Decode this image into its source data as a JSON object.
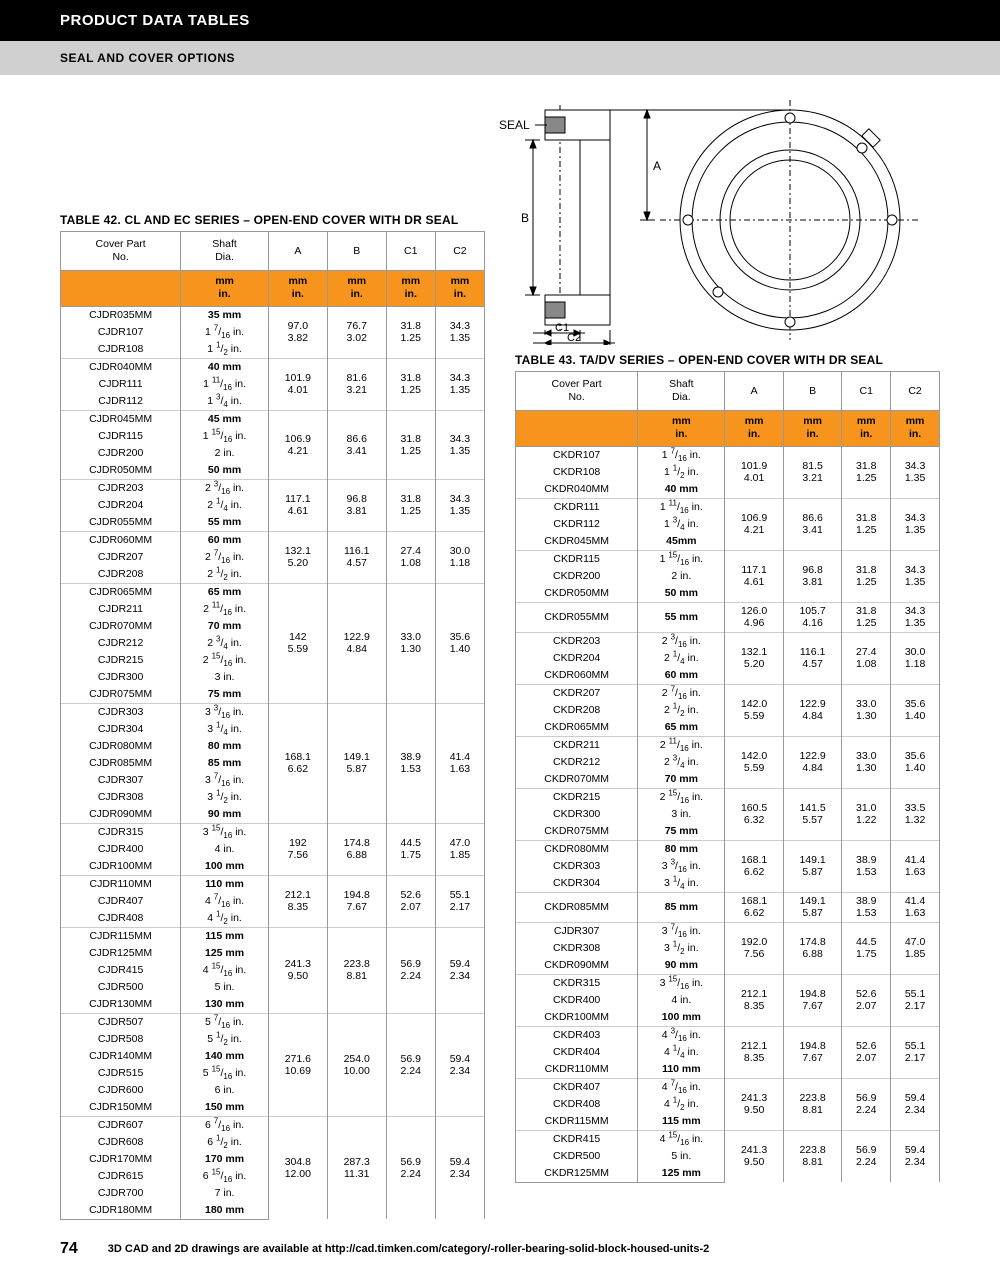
{
  "header": {
    "title": "PRODUCT DATA TABLES",
    "subtitle": "SEAL AND COVER OPTIONS"
  },
  "diagram": {
    "seal_label": "SEAL",
    "labels": {
      "A": "A",
      "B": "B",
      "C1": "C1",
      "C2": "C2"
    }
  },
  "units_row": [
    "mm",
    "in."
  ],
  "table42": {
    "title": "TABLE 42. CL AND EC SERIES – OPEN-END COVER WITH DR SEAL",
    "columns": [
      "Cover Part\nNo.",
      "Shaft\nDia.",
      "A",
      "B",
      "C1",
      "C2"
    ],
    "groups": [
      {
        "rows": [
          [
            "CJDR035MM",
            "35 mm",
            true
          ],
          [
            "CJDR107",
            "1 7/16 in.",
            false
          ],
          [
            "CJDR108",
            "1 1/2 in.",
            false
          ]
        ],
        "A": [
          "97.0",
          "3.82"
        ],
        "B": [
          "76.7",
          "3.02"
        ],
        "C1": [
          "31.8",
          "1.25"
        ],
        "C2": [
          "34.3",
          "1.35"
        ]
      },
      {
        "rows": [
          [
            "CJDR040MM",
            "40 mm",
            true
          ],
          [
            "CJDR111",
            "1 11/16 in.",
            false
          ],
          [
            "CJDR112",
            "1 3/4 in.",
            false
          ]
        ],
        "A": [
          "101.9",
          "4.01"
        ],
        "B": [
          "81.6",
          "3.21"
        ],
        "C1": [
          "31.8",
          "1.25"
        ],
        "C2": [
          "34.3",
          "1.35"
        ]
      },
      {
        "rows": [
          [
            "CJDR045MM",
            "45 mm",
            true
          ],
          [
            "CJDR115",
            "1 15/16 in.",
            false
          ],
          [
            "CJDR200",
            "2 in.",
            false
          ],
          [
            "CJDR050MM",
            "50 mm",
            true
          ]
        ],
        "A": [
          "106.9",
          "4.21"
        ],
        "B": [
          "86.6",
          "3.41"
        ],
        "C1": [
          "31.8",
          "1.25"
        ],
        "C2": [
          "34.3",
          "1.35"
        ]
      },
      {
        "rows": [
          [
            "CJDR203",
            "2 3/16 in.",
            false
          ],
          [
            "CJDR204",
            "2 1/4 in.",
            false
          ],
          [
            "CJDR055MM",
            "55 mm",
            true
          ]
        ],
        "A": [
          "117.1",
          "4.61"
        ],
        "B": [
          "96.8",
          "3.81"
        ],
        "C1": [
          "31.8",
          "1.25"
        ],
        "C2": [
          "34.3",
          "1.35"
        ]
      },
      {
        "rows": [
          [
            "CJDR060MM",
            "60 mm",
            true
          ],
          [
            "CJDR207",
            "2 7/16 in.",
            false
          ],
          [
            "CJDR208",
            "2 1/2 in.",
            false
          ]
        ],
        "A": [
          "132.1",
          "5.20"
        ],
        "B": [
          "116.1",
          "4.57"
        ],
        "C1": [
          "27.4",
          "1.08"
        ],
        "C2": [
          "30.0",
          "1.18"
        ]
      },
      {
        "rows": [
          [
            "CJDR065MM",
            "65 mm",
            true
          ],
          [
            "CJDR211",
            "2 11/16 in.",
            false
          ],
          [
            "CJDR070MM",
            "70 mm",
            true
          ],
          [
            "CJDR212",
            "2 3/4 in.",
            false
          ],
          [
            "CJDR215",
            "2 15/16 in.",
            false
          ],
          [
            "CJDR300",
            "3 in.",
            false
          ],
          [
            "CJDR075MM",
            "75 mm",
            true
          ]
        ],
        "A": [
          "142",
          "5.59"
        ],
        "B": [
          "122.9",
          "4.84"
        ],
        "C1": [
          "33.0",
          "1.30"
        ],
        "C2": [
          "35.6",
          "1.40"
        ]
      },
      {
        "rows": [
          [
            "CJDR303",
            "3 3/16 in.",
            false
          ],
          [
            "CJDR304",
            "3 1/4 in.",
            false
          ],
          [
            "CJDR080MM",
            "80 mm",
            true
          ],
          [
            "CJDR085MM",
            "85 mm",
            true
          ],
          [
            "CJDR307",
            "3 7/16 in.",
            false
          ],
          [
            "CJDR308",
            "3 1/2 in.",
            false
          ],
          [
            "CJDR090MM",
            "90 mm",
            true
          ]
        ],
        "A": [
          "168.1",
          "6.62"
        ],
        "B": [
          "149.1",
          "5.87"
        ],
        "C1": [
          "38.9",
          "1.53"
        ],
        "C2": [
          "41.4",
          "1.63"
        ]
      },
      {
        "rows": [
          [
            "CJDR315",
            "3 15/16 in.",
            false
          ],
          [
            "CJDR400",
            "4 in.",
            false
          ],
          [
            "CJDR100MM",
            "100 mm",
            true
          ]
        ],
        "A": [
          "192",
          "7.56"
        ],
        "B": [
          "174.8",
          "6.88"
        ],
        "C1": [
          "44.5",
          "1.75"
        ],
        "C2": [
          "47.0",
          "1.85"
        ]
      },
      {
        "rows": [
          [
            "CJDR110MM",
            "110 mm",
            true
          ],
          [
            "CJDR407",
            "4 7/16 in.",
            false
          ],
          [
            "CJDR408",
            "4 1/2 in.",
            false
          ]
        ],
        "A": [
          "212.1",
          "8.35"
        ],
        "B": [
          "194.8",
          "7.67"
        ],
        "C1": [
          "52.6",
          "2.07"
        ],
        "C2": [
          "55.1",
          "2.17"
        ]
      },
      {
        "rows": [
          [
            "CJDR115MM",
            "115 mm",
            true
          ],
          [
            "CJDR125MM",
            "125 mm",
            true
          ],
          [
            "CJDR415",
            "4 15/16 in.",
            false
          ],
          [
            "CJDR500",
            "5 in.",
            false
          ],
          [
            "CJDR130MM",
            "130 mm",
            true
          ]
        ],
        "A": [
          "241.3",
          "9.50"
        ],
        "B": [
          "223.8",
          "8.81"
        ],
        "C1": [
          "56.9",
          "2.24"
        ],
        "C2": [
          "59.4",
          "2.34"
        ]
      },
      {
        "rows": [
          [
            "CJDR507",
            "5 7/16 in.",
            false
          ],
          [
            "CJDR508",
            "5 1/2 in.",
            false
          ],
          [
            "CJDR140MM",
            "140 mm",
            true
          ],
          [
            "CJDR515",
            "5 15/16 in.",
            false
          ],
          [
            "CJDR600",
            "6 in.",
            false
          ],
          [
            "CJDR150MM",
            "150 mm",
            true
          ]
        ],
        "A": [
          "271.6",
          "10.69"
        ],
        "B": [
          "254.0",
          "10.00"
        ],
        "C1": [
          "56.9",
          "2.24"
        ],
        "C2": [
          "59.4",
          "2.34"
        ]
      },
      {
        "rows": [
          [
            "CJDR607",
            "6 7/16 in.",
            false
          ],
          [
            "CJDR608",
            "6 1/2 in.",
            false
          ],
          [
            "CJDR170MM",
            "170 mm",
            true
          ],
          [
            "CJDR615",
            "6 15/16 in.",
            false
          ],
          [
            "CJDR700",
            "7 in.",
            false
          ],
          [
            "CJDR180MM",
            "180 mm",
            true
          ]
        ],
        "A": [
          "304.8",
          "12.00"
        ],
        "B": [
          "287.3",
          "11.31"
        ],
        "C1": [
          "56.9",
          "2.24"
        ],
        "C2": [
          "59.4",
          "2.34"
        ]
      }
    ]
  },
  "table43": {
    "title": "TABLE 43. TA/DV SERIES – OPEN-END COVER WITH DR SEAL",
    "columns": [
      "Cover Part\nNo.",
      "Shaft\nDia.",
      "A",
      "B",
      "C1",
      "C2"
    ],
    "groups": [
      {
        "rows": [
          [
            "CKDR107",
            "1 7/16 in.",
            false
          ],
          [
            "CKDR108",
            "1 1/2 in.",
            false
          ],
          [
            "CKDR040MM",
            "40 mm",
            true
          ]
        ],
        "A": [
          "101.9",
          "4.01"
        ],
        "B": [
          "81.5",
          "3.21"
        ],
        "C1": [
          "31.8",
          "1.25"
        ],
        "C2": [
          "34.3",
          "1.35"
        ]
      },
      {
        "rows": [
          [
            "CKDR111",
            "1 11/16 in.",
            false
          ],
          [
            "CKDR112",
            "1 3/4 in.",
            false
          ],
          [
            "CKDR045MM",
            "45mm",
            true
          ]
        ],
        "A": [
          "106.9",
          "4.21"
        ],
        "B": [
          "86.6",
          "3.41"
        ],
        "C1": [
          "31.8",
          "1.25"
        ],
        "C2": [
          "34.3",
          "1.35"
        ]
      },
      {
        "rows": [
          [
            "CKDR115",
            "1 15/16 in.",
            false
          ],
          [
            "CKDR200",
            "2 in.",
            false
          ],
          [
            "CKDR050MM",
            "50 mm",
            true
          ]
        ],
        "A": [
          "117.1",
          "4.61"
        ],
        "B": [
          "96.8",
          "3.81"
        ],
        "C1": [
          "31.8",
          "1.25"
        ],
        "C2": [
          "34.3",
          "1.35"
        ]
      },
      {
        "rows": [
          [
            "CKDR055MM",
            "55 mm",
            true
          ]
        ],
        "A": [
          "126.0",
          "4.96"
        ],
        "B": [
          "105.7",
          "4.16"
        ],
        "C1": [
          "31.8",
          "1.25"
        ],
        "C2": [
          "34.3",
          "1.35"
        ]
      },
      {
        "rows": [
          [
            "CKDR203",
            "2 3/16 in.",
            false
          ],
          [
            "CKDR204",
            "2 1/4 in.",
            false
          ],
          [
            "CKDR060MM",
            "60 mm",
            true
          ]
        ],
        "A": [
          "132.1",
          "5.20"
        ],
        "B": [
          "116.1",
          "4.57"
        ],
        "C1": [
          "27.4",
          "1.08"
        ],
        "C2": [
          "30.0",
          "1.18"
        ]
      },
      {
        "rows": [
          [
            "CKDR207",
            "2 7/16 in.",
            false
          ],
          [
            "CKDR208",
            "2 1/2 in.",
            false
          ],
          [
            "CKDR065MM",
            "65 mm",
            true
          ]
        ],
        "A": [
          "142.0",
          "5.59"
        ],
        "B": [
          "122.9",
          "4.84"
        ],
        "C1": [
          "33.0",
          "1.30"
        ],
        "C2": [
          "35.6",
          "1.40"
        ]
      },
      {
        "rows": [
          [
            "CKDR211",
            "2 11/16 in.",
            false
          ],
          [
            "CKDR212",
            "2 3/4 in.",
            false
          ],
          [
            "CKDR070MM",
            "70 mm",
            true
          ]
        ],
        "A": [
          "142.0",
          "5.59"
        ],
        "B": [
          "122.9",
          "4.84"
        ],
        "C1": [
          "33.0",
          "1.30"
        ],
        "C2": [
          "35.6",
          "1.40"
        ]
      },
      {
        "rows": [
          [
            "CKDR215",
            "2 15/16 in.",
            false
          ],
          [
            "CKDR300",
            "3 in.",
            false
          ],
          [
            "CKDR075MM",
            "75 mm",
            true
          ]
        ],
        "A": [
          "160.5",
          "6.32"
        ],
        "B": [
          "141.5",
          "5.57"
        ],
        "C1": [
          "31.0",
          "1.22"
        ],
        "C2": [
          "33.5",
          "1.32"
        ]
      },
      {
        "rows": [
          [
            "CKDR080MM",
            "80 mm",
            true
          ],
          [
            "CKDR303",
            "3 3/16 in.",
            false
          ],
          [
            "CKDR304",
            "3 1/4 in.",
            false
          ]
        ],
        "A": [
          "168.1",
          "6.62"
        ],
        "B": [
          "149.1",
          "5.87"
        ],
        "C1": [
          "38.9",
          "1.53"
        ],
        "C2": [
          "41.4",
          "1.63"
        ]
      },
      {
        "rows": [
          [
            "CKDR085MM",
            "85 mm",
            true
          ]
        ],
        "A": [
          "168.1",
          "6.62"
        ],
        "B": [
          "149.1",
          "5.87"
        ],
        "C1": [
          "38.9",
          "1.53"
        ],
        "C2": [
          "41.4",
          "1.63"
        ]
      },
      {
        "rows": [
          [
            "CJDR307",
            "3 7/16 in.",
            false
          ],
          [
            "CKDR308",
            "3 1/2 in.",
            false
          ],
          [
            "CKDR090MM",
            "90 mm",
            true
          ]
        ],
        "A": [
          "192.0",
          "7.56"
        ],
        "B": [
          "174.8",
          "6.88"
        ],
        "C1": [
          "44.5",
          "1.75"
        ],
        "C2": [
          "47.0",
          "1.85"
        ]
      },
      {
        "rows": [
          [
            "CKDR315",
            "3 15/16 in.",
            false
          ],
          [
            "CKDR400",
            "4 in.",
            false
          ],
          [
            "CKDR100MM",
            "100 mm",
            true
          ]
        ],
        "A": [
          "212.1",
          "8.35"
        ],
        "B": [
          "194.8",
          "7.67"
        ],
        "C1": [
          "52.6",
          "2.07"
        ],
        "C2": [
          "55.1",
          "2.17"
        ]
      },
      {
        "rows": [
          [
            "CKDR403",
            "4 3/16 in.",
            false
          ],
          [
            "CKDR404",
            "4 1/4 in.",
            false
          ],
          [
            "CKDR110MM",
            "110 mm",
            true
          ]
        ],
        "A": [
          "212.1",
          "8.35"
        ],
        "B": [
          "194.8",
          "7.67"
        ],
        "C1": [
          "52.6",
          "2.07"
        ],
        "C2": [
          "55.1",
          "2.17"
        ]
      },
      {
        "rows": [
          [
            "CKDR407",
            "4 7/16 in.",
            false
          ],
          [
            "CKDR408",
            "4 1/2 in.",
            false
          ],
          [
            "CKDR115MM",
            "115 mm",
            true
          ]
        ],
        "A": [
          "241.3",
          "9.50"
        ],
        "B": [
          "223.8",
          "8.81"
        ],
        "C1": [
          "56.9",
          "2.24"
        ],
        "C2": [
          "59.4",
          "2.34"
        ]
      },
      {
        "rows": [
          [
            "CKDR415",
            "4 15/16 in.",
            false
          ],
          [
            "CKDR500",
            "5 in.",
            false
          ],
          [
            "CKDR125MM",
            "125 mm",
            true
          ]
        ],
        "A": [
          "241.3",
          "9.50"
        ],
        "B": [
          "223.8",
          "8.81"
        ],
        "C1": [
          "56.9",
          "2.24"
        ],
        "C2": [
          "59.4",
          "2.34"
        ]
      }
    ]
  },
  "footer": {
    "page": "74",
    "text": "3D CAD and 2D drawings are available at http://cad.timken.com/category/-roller-bearing-solid-block-housed-units-2"
  },
  "colors": {
    "accent": "#f7941d",
    "header_black": "#000000",
    "header_gray": "#d0d0d0",
    "border": "#999999"
  }
}
